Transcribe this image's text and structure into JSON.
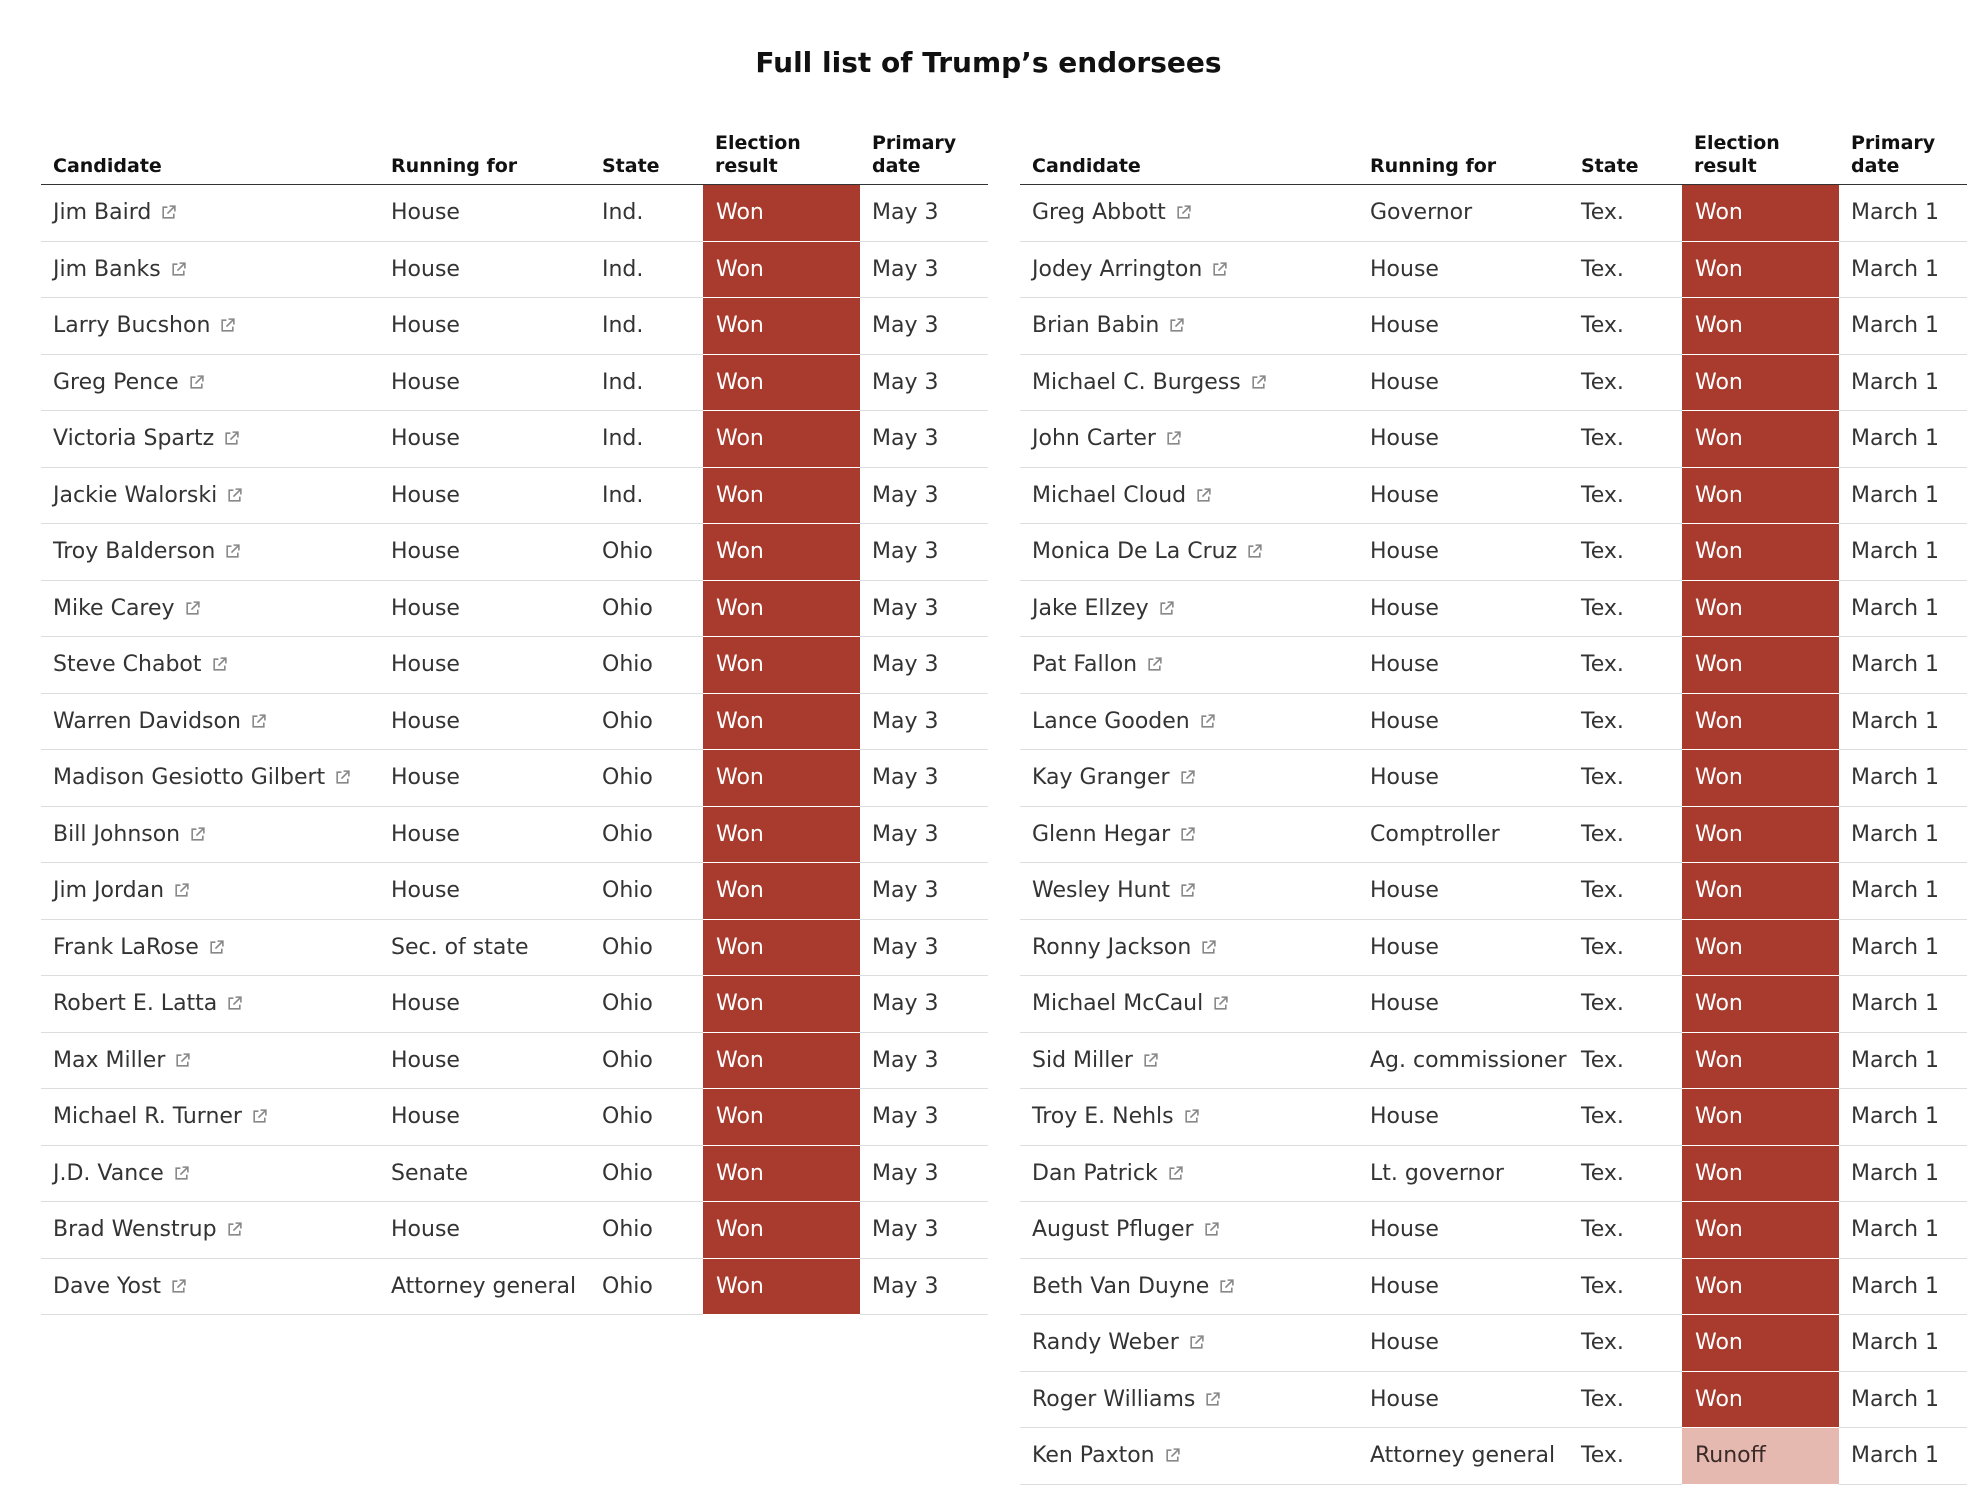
{
  "title": "Full list of Trump’s endorsees",
  "result_styles": {
    "Won": {
      "fill": "#a83b2d",
      "text": "#ffffff"
    },
    "Runoff": {
      "fill": "#e6b9b0",
      "text": "#3a2a28"
    }
  },
  "tables": [
    {
      "columns": [
        "Candidate",
        "Running for",
        "State",
        "Election result",
        "Primary date"
      ],
      "rows": [
        [
          "Jim Baird",
          "House",
          "Ind.",
          "Won",
          "May 3"
        ],
        [
          "Jim Banks",
          "House",
          "Ind.",
          "Won",
          "May 3"
        ],
        [
          "Larry Bucshon",
          "House",
          "Ind.",
          "Won",
          "May 3"
        ],
        [
          "Greg Pence",
          "House",
          "Ind.",
          "Won",
          "May 3"
        ],
        [
          "Victoria Spartz",
          "House",
          "Ind.",
          "Won",
          "May 3"
        ],
        [
          "Jackie Walorski",
          "House",
          "Ind.",
          "Won",
          "May 3"
        ],
        [
          "Troy Balderson",
          "House",
          "Ohio",
          "Won",
          "May 3"
        ],
        [
          "Mike Carey",
          "House",
          "Ohio",
          "Won",
          "May 3"
        ],
        [
          "Steve Chabot",
          "House",
          "Ohio",
          "Won",
          "May 3"
        ],
        [
          "Warren Davidson",
          "House",
          "Ohio",
          "Won",
          "May 3"
        ],
        [
          "Madison Gesiotto Gilbert",
          "House",
          "Ohio",
          "Won",
          "May 3"
        ],
        [
          "Bill Johnson",
          "House",
          "Ohio",
          "Won",
          "May 3"
        ],
        [
          "Jim Jordan",
          "House",
          "Ohio",
          "Won",
          "May 3"
        ],
        [
          "Frank LaRose",
          "Sec. of state",
          "Ohio",
          "Won",
          "May 3"
        ],
        [
          "Robert E. Latta",
          "House",
          "Ohio",
          "Won",
          "May 3"
        ],
        [
          "Max Miller",
          "House",
          "Ohio",
          "Won",
          "May 3"
        ],
        [
          "Michael R. Turner",
          "House",
          "Ohio",
          "Won",
          "May 3"
        ],
        [
          "J.D. Vance",
          "Senate",
          "Ohio",
          "Won",
          "May 3"
        ],
        [
          "Brad Wenstrup",
          "House",
          "Ohio",
          "Won",
          "May 3"
        ],
        [
          "Dave Yost",
          "Attorney general",
          "Ohio",
          "Won",
          "May 3"
        ]
      ]
    },
    {
      "columns": [
        "Candidate",
        "Running for",
        "State",
        "Election result",
        "Primary date"
      ],
      "rows": [
        [
          "Greg Abbott",
          "Governor",
          "Tex.",
          "Won",
          "March 1"
        ],
        [
          "Jodey Arrington",
          "House",
          "Tex.",
          "Won",
          "March 1"
        ],
        [
          "Brian Babin",
          "House",
          "Tex.",
          "Won",
          "March 1"
        ],
        [
          "Michael C. Burgess",
          "House",
          "Tex.",
          "Won",
          "March 1"
        ],
        [
          "John Carter",
          "House",
          "Tex.",
          "Won",
          "March 1"
        ],
        [
          "Michael Cloud",
          "House",
          "Tex.",
          "Won",
          "March 1"
        ],
        [
          "Monica De La Cruz",
          "House",
          "Tex.",
          "Won",
          "March 1"
        ],
        [
          "Jake Ellzey",
          "House",
          "Tex.",
          "Won",
          "March 1"
        ],
        [
          "Pat Fallon",
          "House",
          "Tex.",
          "Won",
          "March 1"
        ],
        [
          "Lance Gooden",
          "House",
          "Tex.",
          "Won",
          "March 1"
        ],
        [
          "Kay Granger",
          "House",
          "Tex.",
          "Won",
          "March 1"
        ],
        [
          "Glenn Hegar",
          "Comptroller",
          "Tex.",
          "Won",
          "March 1"
        ],
        [
          "Wesley Hunt",
          "House",
          "Tex.",
          "Won",
          "March 1"
        ],
        [
          "Ronny Jackson",
          "House",
          "Tex.",
          "Won",
          "March 1"
        ],
        [
          "Michael McCaul",
          "House",
          "Tex.",
          "Won",
          "March 1"
        ],
        [
          "Sid Miller",
          "Ag. commissioner",
          "Tex.",
          "Won",
          "March 1"
        ],
        [
          "Troy E. Nehls",
          "House",
          "Tex.",
          "Won",
          "March 1"
        ],
        [
          "Dan Patrick",
          "Lt. governor",
          "Tex.",
          "Won",
          "March 1"
        ],
        [
          "August Pfluger",
          "House",
          "Tex.",
          "Won",
          "March 1"
        ],
        [
          "Beth Van Duyne",
          "House",
          "Tex.",
          "Won",
          "March 1"
        ],
        [
          "Randy Weber",
          "House",
          "Tex.",
          "Won",
          "March 1"
        ],
        [
          "Roger Williams",
          "House",
          "Tex.",
          "Won",
          "March 1"
        ],
        [
          "Ken Paxton",
          "Attorney general",
          "Tex.",
          "Runoff",
          "March 1"
        ]
      ]
    }
  ]
}
